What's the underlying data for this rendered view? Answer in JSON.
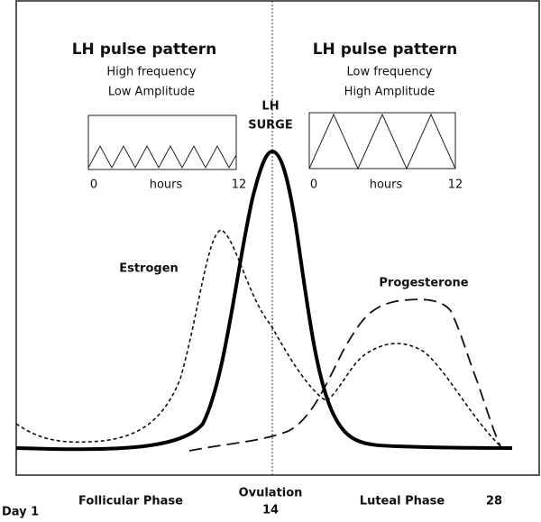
{
  "panels": [
    {
      "title": "LH pulse pattern",
      "lines": [
        "High frequency",
        "Low Amplitude"
      ],
      "axis": [
        "0",
        "hours",
        "12"
      ]
    },
    {
      "title": "LH pulse pattern",
      "lines": [
        "Low frequency",
        "High Amplitude"
      ],
      "axis": [
        "0",
        "hours",
        "12"
      ]
    }
  ],
  "surge_label": [
    "LH",
    "SURGE"
  ],
  "curve_labels": {
    "estrogen": "Estrogen",
    "progesterone": "Progesterone"
  },
  "x_labels": {
    "start": "Day 1",
    "follicular": "Follicular Phase",
    "ovulation": [
      "Ovulation",
      "14"
    ],
    "luteal": "Luteal Phase",
    "end": "28"
  }
}
